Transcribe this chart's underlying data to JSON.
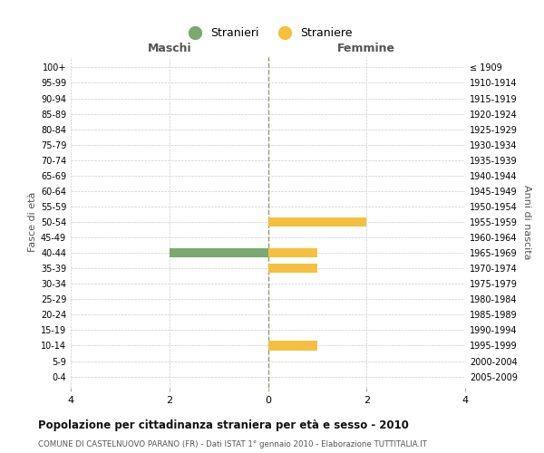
{
  "age_groups": [
    "0-4",
    "5-9",
    "10-14",
    "15-19",
    "20-24",
    "25-29",
    "30-34",
    "35-39",
    "40-44",
    "45-49",
    "50-54",
    "55-59",
    "60-64",
    "65-69",
    "70-74",
    "75-79",
    "80-84",
    "85-89",
    "90-94",
    "95-99",
    "100+"
  ],
  "birth_years": [
    "2005-2009",
    "2000-2004",
    "1995-1999",
    "1990-1994",
    "1985-1989",
    "1980-1984",
    "1975-1979",
    "1970-1974",
    "1965-1969",
    "1960-1964",
    "1955-1959",
    "1950-1954",
    "1945-1949",
    "1940-1944",
    "1935-1939",
    "1930-1934",
    "1925-1929",
    "1920-1924",
    "1915-1919",
    "1910-1914",
    "≤ 1909"
  ],
  "males": [
    0,
    0,
    0,
    0,
    0,
    0,
    0,
    0,
    2,
    0,
    0,
    0,
    0,
    0,
    0,
    0,
    0,
    0,
    0,
    0,
    0
  ],
  "females": [
    0,
    0,
    1,
    0,
    0,
    0,
    0,
    1,
    1,
    0,
    2,
    0,
    0,
    0,
    0,
    0,
    0,
    0,
    0,
    0,
    0
  ],
  "male_color": "#7aaa6e",
  "female_color": "#f5c040",
  "male_label": "Stranieri",
  "female_label": "Straniere",
  "xlim": 4,
  "maschi_label": "Maschi",
  "femmine_label": "Femmine",
  "ylabel_left": "Fasce di età",
  "ylabel_right": "Anni di nascita",
  "title": "Popolazione per cittadinanza straniera per età e sesso - 2010",
  "subtitle": "COMUNE DI CASTELNUOVO PARANO (FR) - Dati ISTAT 1° gennaio 2010 - Elaborazione TUTTITALIA.IT",
  "background_color": "#ffffff",
  "grid_color": "#cccccc",
  "center_line_color": "#999966"
}
